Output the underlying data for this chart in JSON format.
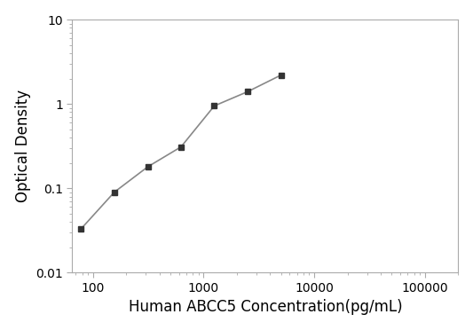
{
  "x": [
    78,
    156,
    313,
    625,
    1250,
    2500,
    5000
  ],
  "y": [
    0.033,
    0.09,
    0.18,
    0.31,
    0.95,
    1.4,
    2.2
  ],
  "xlabel": "Human ABCC5 Concentration(pg/mL)",
  "ylabel": "Optical Density",
  "xlim": [
    65,
    200000
  ],
  "ylim": [
    0.01,
    10
  ],
  "xticks": [
    100,
    1000,
    10000,
    100000
  ],
  "yticks": [
    0.01,
    0.1,
    1,
    10
  ],
  "line_color": "#888888",
  "marker_color": "#333333",
  "marker": "s",
  "marker_size": 5,
  "line_width": 1.2,
  "xlabel_fontsize": 12,
  "ylabel_fontsize": 12,
  "tick_labelsize": 10,
  "background_color": "#ffffff",
  "spine_color": "#aaaaaa"
}
